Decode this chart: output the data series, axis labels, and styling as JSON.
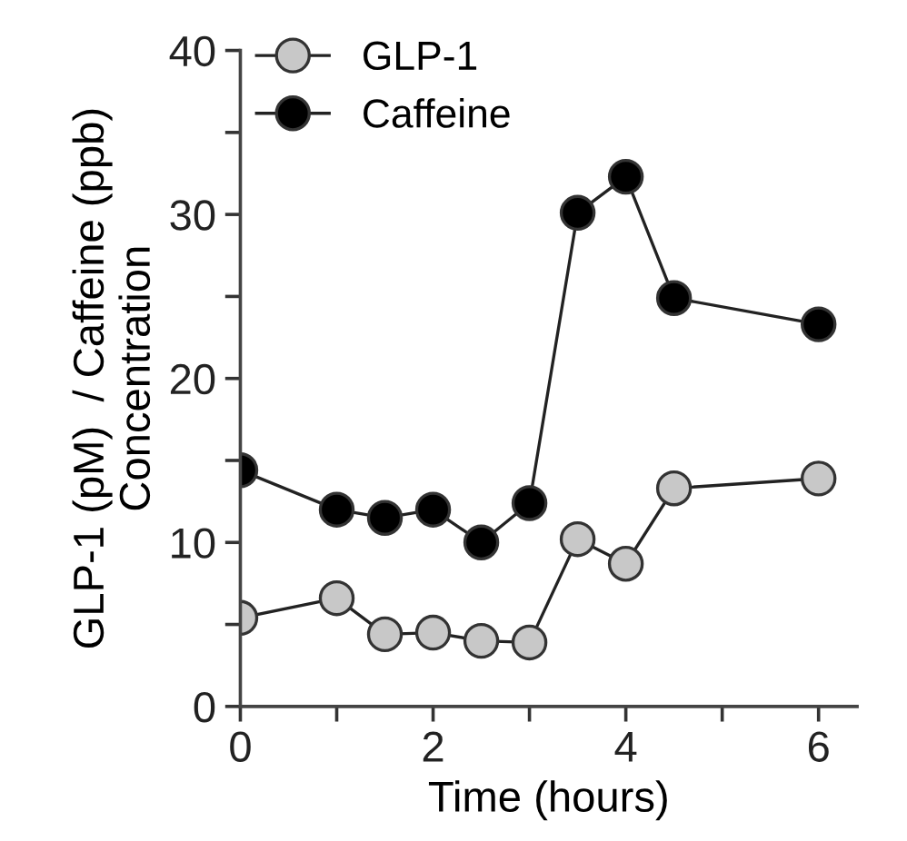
{
  "chart_data": {
    "type": "line",
    "xlabel": "Time (hours)",
    "ylabel": "GLP-1 (pM)  / Caffeine (ppb)\nConcentration",
    "x": [
      0,
      1,
      1.5,
      2,
      2.5,
      3,
      3.5,
      4,
      4.5,
      6
    ],
    "series": [
      {
        "name": "GLP-1",
        "color": "#c8c8c8",
        "values": [
          5.4,
          6.6,
          4.4,
          4.5,
          4.0,
          3.9,
          10.2,
          8.7,
          13.3,
          13.9
        ]
      },
      {
        "name": "Caffeine",
        "color": "#000000",
        "values": [
          14.4,
          12.0,
          11.5,
          12.0,
          10.0,
          12.4,
          30.1,
          32.3,
          24.9,
          23.3
        ]
      }
    ],
    "xlim": [
      0,
      6.4
    ],
    "ylim": [
      0,
      40
    ],
    "xticks": [
      0,
      {
        "value": 1,
        "label": null
      },
      2,
      {
        "value": 3,
        "label": null
      },
      4,
      {
        "value": 5,
        "label": null
      },
      6
    ],
    "yticks": [
      0,
      {
        "value": 5,
        "label": null
      },
      10,
      {
        "value": 15,
        "label": null
      },
      20,
      {
        "value": 25,
        "label": null
      },
      30,
      {
        "value": 35,
        "label": null
      },
      40
    ],
    "marker": "circle",
    "line_style": "solid",
    "legend": "top left",
    "grid": false
  }
}
